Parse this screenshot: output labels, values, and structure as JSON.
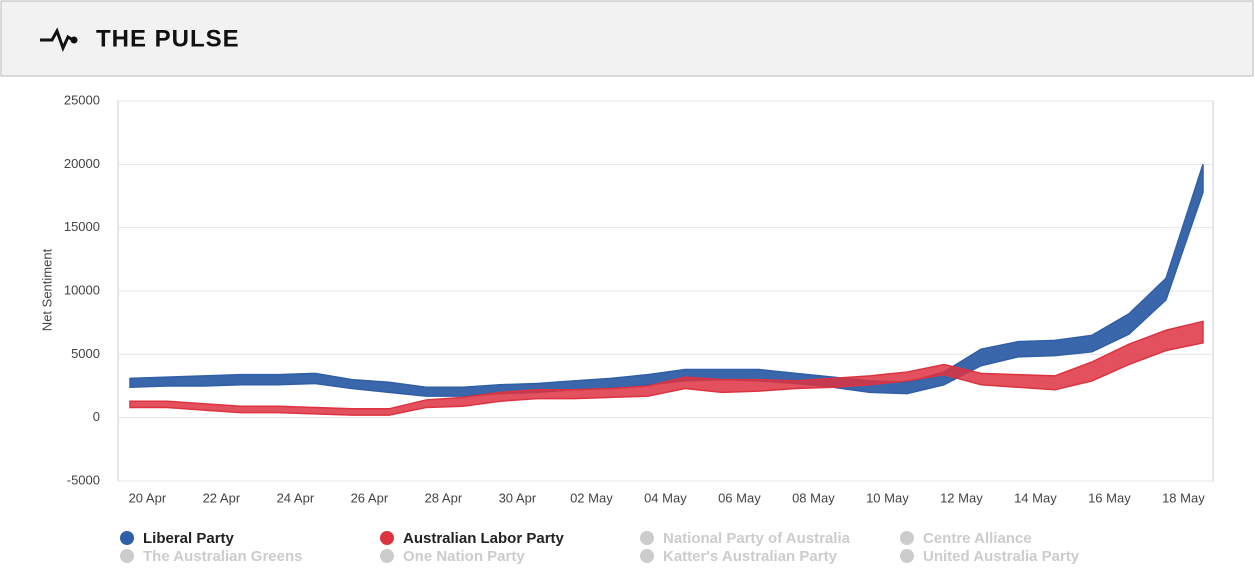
{
  "header": {
    "title": "THE PULSE"
  },
  "chart_data": {
    "type": "band",
    "y_label": "Net Sentiment",
    "categories": [
      "20 Apr",
      null,
      "22 Apr",
      null,
      "24 Apr",
      null,
      "26 Apr",
      null,
      "28 Apr",
      null,
      "30 Apr",
      null,
      "02 May",
      null,
      "04 May",
      null,
      "06 May",
      null,
      "08 May",
      null,
      "10 May",
      null,
      "12 May",
      null,
      "14 May",
      null,
      "16 May",
      null,
      "18 May",
      null
    ],
    "series": [
      {
        "name": "Liberal Party",
        "color": "#2f5fa7",
        "values": [
          3100,
          3200,
          3300,
          3400,
          3400,
          3500,
          3000,
          2800,
          2400,
          2400,
          2600,
          2700,
          2900,
          3100,
          3400,
          3800,
          3800,
          3800,
          3500,
          3200,
          2900,
          2800,
          3600,
          5400,
          6000,
          6100,
          6500,
          8200,
          11000,
          20000
        ],
        "low": [
          2400,
          2500,
          2500,
          2600,
          2600,
          2700,
          2300,
          2000,
          1700,
          1700,
          1900,
          2000,
          2200,
          2300,
          2600,
          2900,
          3000,
          2900,
          2700,
          2400,
          2000,
          1900,
          2600,
          4100,
          4800,
          4900,
          5200,
          6600,
          9300,
          17800
        ]
      },
      {
        "name": "Australian Labor Party",
        "color": "#dd3341",
        "values": [
          1300,
          1300,
          1100,
          900,
          900,
          800,
          700,
          700,
          1400,
          1600,
          2000,
          2200,
          2200,
          2300,
          2500,
          3200,
          3000,
          3000,
          2900,
          3100,
          3300,
          3600,
          4200,
          3500,
          3400,
          3300,
          4400,
          5800,
          6900,
          7600
        ],
        "low": [
          800,
          800,
          600,
          400,
          400,
          300,
          200,
          200,
          800,
          900,
          1300,
          1500,
          1500,
          1600,
          1700,
          2300,
          2000,
          2100,
          2300,
          2400,
          2600,
          2900,
          3400,
          2600,
          2400,
          2200,
          2900,
          4200,
          5300,
          5900
        ]
      }
    ],
    "legend_inactive": [
      "National Party of Australia",
      "Centre Alliance",
      "The Australian Greens",
      "One Nation Party",
      "Katter's Australian Party",
      "United Australia Party"
    ],
    "inactive_color": "#cccccc",
    "ylim": [
      -5000,
      25000
    ],
    "yticks": [
      -5000,
      0,
      5000,
      10000,
      15000,
      20000,
      25000
    ],
    "grid": true
  }
}
